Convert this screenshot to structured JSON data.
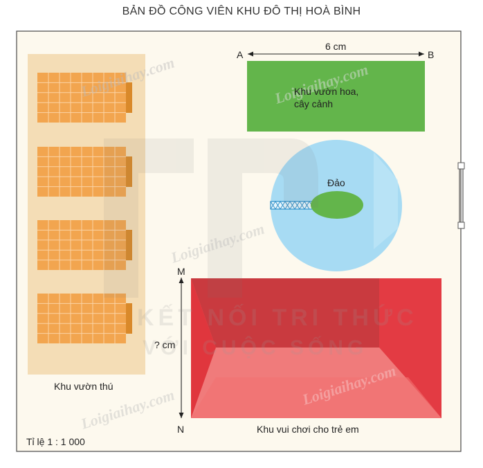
{
  "title": "BẢN ĐỒ CÔNG VIÊN KHU ĐÔ THỊ HOÀ BÌNH",
  "flower_area": {
    "line1": "Khu vườn hoa,",
    "line2": "cây cảnh"
  },
  "distance_label": "6 cm",
  "point_a": "A",
  "point_b": "B",
  "island_label": "Đảo",
  "zoo_label": "Khu vườn thú",
  "playground_label": "Khu vui chơi cho trẻ em",
  "unknown_label": "? cm",
  "point_m": "M",
  "point_n": "N",
  "scale_label": "Tỉ lệ 1 : 1 000",
  "watermarks": [
    "Loigiaihay.com",
    "Loigiaihay.com",
    "Loigiaihay.com",
    "Loigiaihay.com",
    "Loigiaihay.com"
  ],
  "bg_watermark": {
    "line1": "KẾT NỐI TRI THỨC",
    "line2": "VỚI CUỘC SỐNG"
  },
  "colors": {
    "page": "#fdf9ee",
    "border": "#555555",
    "zoo_bg": "#f4ddb6",
    "building": "#f2a54f",
    "building_grid": "#fbd4a6",
    "building_side": "#d9892a",
    "green": "#63b54b",
    "water": "#a7dbf3",
    "water_edge": "#7cc6ec",
    "red_top": "#c93a3f",
    "red_dark": "#b02b33",
    "red_side": "#ea3f45",
    "red_bottom": "#ef6a6a",
    "red_inner": "#f07b7b"
  }
}
